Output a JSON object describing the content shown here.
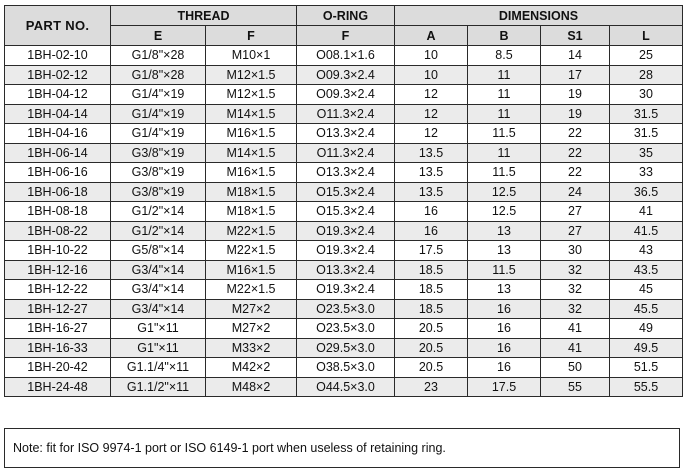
{
  "headers": {
    "part_no": "PART NO.",
    "groups": {
      "thread": "THREAD",
      "oring": "O-RING",
      "dimensions": "DIMENSIONS"
    },
    "sub": {
      "e": "E",
      "f_thread": "F",
      "f_oring": "F",
      "a": "A",
      "b": "B",
      "s1": "S1",
      "l": "L"
    }
  },
  "rows": [
    [
      "1BH-02-10",
      "G1/8\"×28",
      "M10×1",
      "O08.1×1.6",
      "10",
      "8.5",
      "14",
      "25"
    ],
    [
      "1BH-02-12",
      "G1/8\"×28",
      "M12×1.5",
      "O09.3×2.4",
      "10",
      "11",
      "17",
      "28"
    ],
    [
      "1BH-04-12",
      "G1/4\"×19",
      "M12×1.5",
      "O09.3×2.4",
      "12",
      "11",
      "19",
      "30"
    ],
    [
      "1BH-04-14",
      "G1/4\"×19",
      "M14×1.5",
      "O11.3×2.4",
      "12",
      "11",
      "19",
      "31.5"
    ],
    [
      "1BH-04-16",
      "G1/4\"×19",
      "M16×1.5",
      "O13.3×2.4",
      "12",
      "11.5",
      "22",
      "31.5"
    ],
    [
      "1BH-06-14",
      "G3/8\"×19",
      "M14×1.5",
      "O11.3×2.4",
      "13.5",
      "11",
      "22",
      "35"
    ],
    [
      "1BH-06-16",
      "G3/8\"×19",
      "M16×1.5",
      "O13.3×2.4",
      "13.5",
      "11.5",
      "22",
      "33"
    ],
    [
      "1BH-06-18",
      "G3/8\"×19",
      "M18×1.5",
      "O15.3×2.4",
      "13.5",
      "12.5",
      "24",
      "36.5"
    ],
    [
      "1BH-08-18",
      "G1/2\"×14",
      "M18×1.5",
      "O15.3×2.4",
      "16",
      "12.5",
      "27",
      "41"
    ],
    [
      "1BH-08-22",
      "G1/2\"×14",
      "M22×1.5",
      "O19.3×2.4",
      "16",
      "13",
      "27",
      "41.5"
    ],
    [
      "1BH-10-22",
      "G5/8\"×14",
      "M22×1.5",
      "O19.3×2.4",
      "17.5",
      "13",
      "30",
      "43"
    ],
    [
      "1BH-12-16",
      "G3/4\"×14",
      "M16×1.5",
      "O13.3×2.4",
      "18.5",
      "11.5",
      "32",
      "43.5"
    ],
    [
      "1BH-12-22",
      "G3/4\"×14",
      "M22×1.5",
      "O19.3×2.4",
      "18.5",
      "13",
      "32",
      "45"
    ],
    [
      "1BH-12-27",
      "G3/4\"×14",
      "M27×2",
      "O23.5×3.0",
      "18.5",
      "16",
      "32",
      "45.5"
    ],
    [
      "1BH-16-27",
      "G1\"×11",
      "M27×2",
      "O23.5×3.0",
      "20.5",
      "16",
      "41",
      "49"
    ],
    [
      "1BH-16-33",
      "G1\"×11",
      "M33×2",
      "O29.5×3.0",
      "20.5",
      "16",
      "41",
      "49.5"
    ],
    [
      "1BH-20-42",
      "G1.1/4\"×11",
      "M42×2",
      "O38.5×3.0",
      "20.5",
      "16",
      "50",
      "51.5"
    ],
    [
      "1BH-24-48",
      "G1.1/2\"×11",
      "M48×2",
      "O44.5×3.0",
      "23",
      "17.5",
      "55",
      "55.5"
    ]
  ],
  "note": "Note: fit for ISO 9974-1 port or ISO 6149-1 port when useless of retaining ring."
}
